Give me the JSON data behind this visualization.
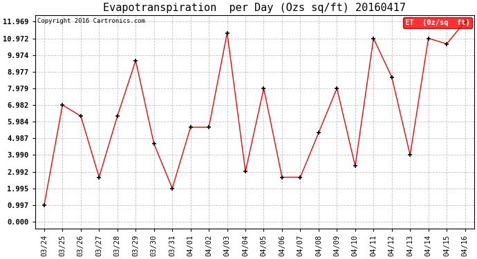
{
  "title": "Evapotranspiration  per Day (Ozs sq/ft) 20160417",
  "copyright": "Copyright 2016 Cartronics.com",
  "legend_label": "ET  (0z/sq  ft)",
  "x_labels": [
    "03/24",
    "03/25",
    "03/26",
    "03/27",
    "03/28",
    "03/29",
    "03/30",
    "03/31",
    "04/01",
    "04/02",
    "04/03",
    "04/04",
    "04/05",
    "04/06",
    "04/07",
    "04/08",
    "04/09",
    "04/10",
    "04/11",
    "04/12",
    "04/13",
    "04/14",
    "04/15",
    "04/16"
  ],
  "y_values": [
    0.997,
    6.982,
    6.316,
    2.66,
    6.316,
    9.641,
    4.654,
    1.995,
    5.651,
    5.651,
    11.302,
    3.0,
    7.979,
    2.66,
    2.66,
    5.318,
    7.979,
    3.325,
    10.972,
    8.644,
    3.99,
    10.972,
    10.64,
    11.969
  ],
  "line_color": "red",
  "marker_color": "black",
  "marker": "+",
  "ylim": [
    0.0,
    11.969
  ],
  "yticks": [
    0.0,
    0.997,
    1.995,
    2.992,
    3.99,
    4.987,
    5.984,
    6.982,
    7.979,
    8.977,
    9.974,
    10.972,
    11.969
  ],
  "background_color": "white",
  "grid_color": "#bbbbbb",
  "title_fontsize": 11,
  "tick_fontsize": 7.5,
  "legend_bg": "red",
  "legend_text_color": "white"
}
